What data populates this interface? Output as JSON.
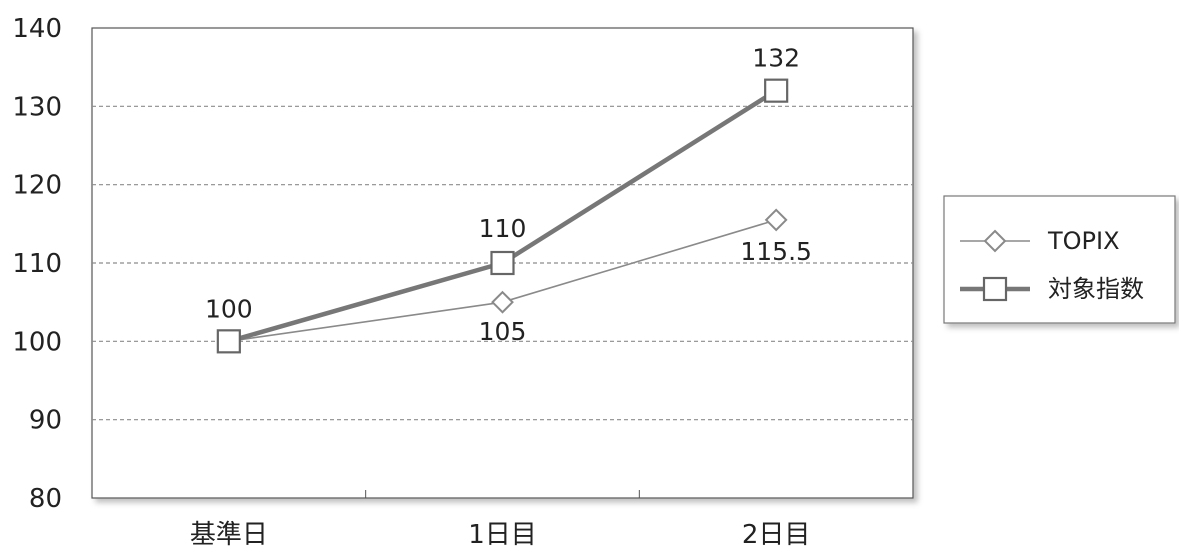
{
  "chart_data": {
    "type": "line",
    "categories": [
      "基準日",
      "1日目",
      "2日目"
    ],
    "series": [
      {
        "name": "TOPIX",
        "values": [
          100,
          105,
          115.5
        ],
        "marker": "diamond",
        "color": "#8a8a8a",
        "data_labels": [
          "",
          "105",
          "115.5"
        ]
      },
      {
        "name": "対象指数",
        "values": [
          100,
          110,
          132
        ],
        "marker": "square",
        "color": "#777777",
        "data_labels": [
          "100",
          "110",
          "132"
        ]
      }
    ],
    "ylim": [
      80,
      140
    ],
    "yticks": [
      80,
      90,
      100,
      110,
      120,
      130,
      140
    ],
    "ytick_labels": [
      "80",
      "90",
      "100",
      "110",
      "120",
      "130",
      "140"
    ],
    "grid": "horizontal-dashed",
    "legend": "right",
    "title": "",
    "xlabel": "",
    "ylabel": ""
  }
}
